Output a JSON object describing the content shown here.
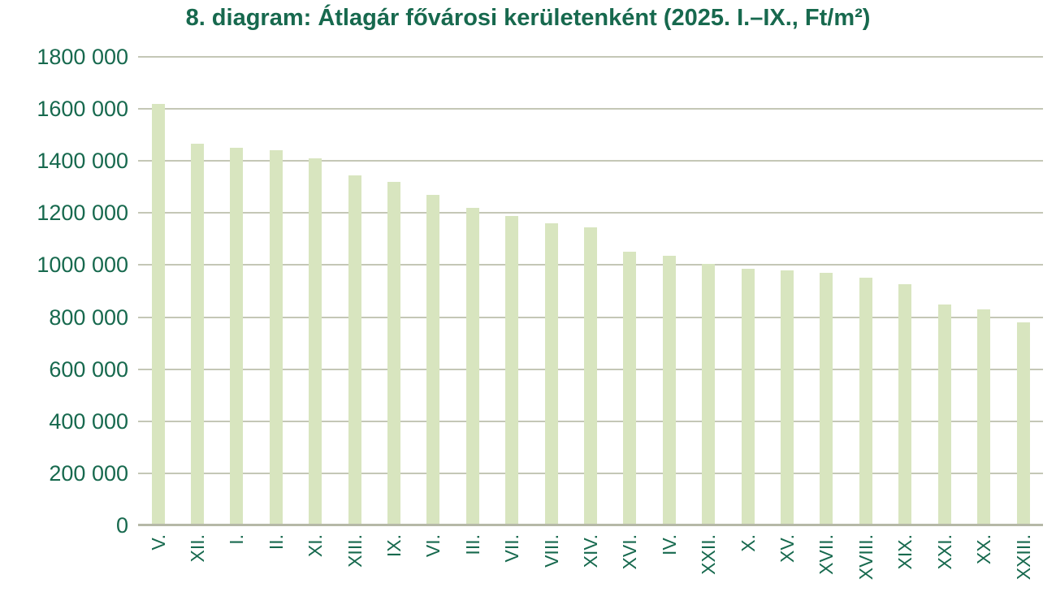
{
  "chart_data": {
    "type": "bar",
    "title": "8. diagram: Átlagár fővárosi kerületenként (2025. I.–IX., Ft/m²)",
    "categories": [
      "V.",
      "XII.",
      "I.",
      "II.",
      "XI.",
      "XIII.",
      "IX.",
      "VI.",
      "III.",
      "VII.",
      "VIII.",
      "XIV.",
      "XVI.",
      "IV.",
      "XXII.",
      "X.",
      "XV.",
      "XVII.",
      "XVIII.",
      "XIX.",
      "XXI.",
      "XX.",
      "XXIII."
    ],
    "values": [
      1620000,
      1465000,
      1450000,
      1440000,
      1410000,
      1345000,
      1320000,
      1270000,
      1220000,
      1190000,
      1160000,
      1145000,
      1050000,
      1035000,
      1005000,
      985000,
      980000,
      970000,
      950000,
      925000,
      850000,
      830000,
      780000
    ],
    "xlabel": "",
    "ylabel": "",
    "ylim": [
      0,
      1800000
    ],
    "y_tick_step": 200000,
    "y_tick_labels": [
      "1800 000",
      "1600 000",
      "1400 000",
      "1200 000",
      "1000 000",
      "800 000",
      "600 000",
      "400 000",
      "200 000",
      "0"
    ],
    "grid": "horizontal",
    "legend": "none",
    "colors": {
      "bar_fill": "#d8e5bf",
      "gridline": "#c4c7b6",
      "axis_line": "#b5b8a7",
      "text": "#17694e"
    }
  }
}
